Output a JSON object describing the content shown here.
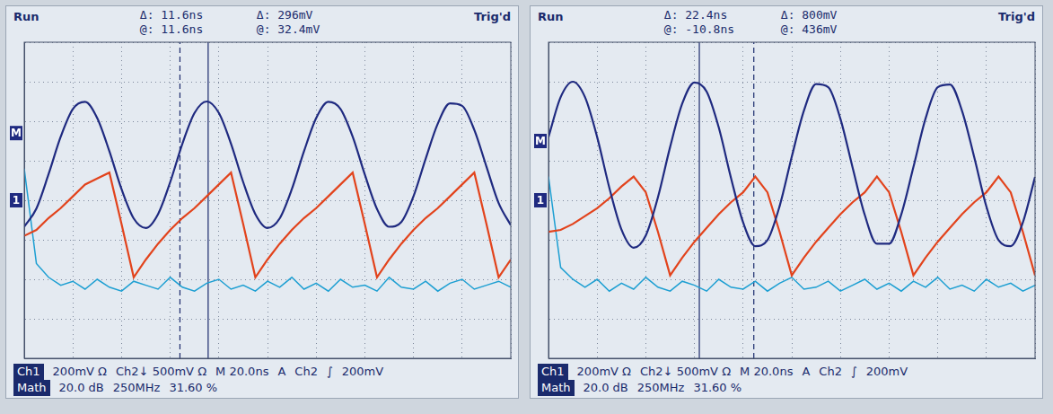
{
  "chart_data": [
    {
      "type": "line",
      "status": "Run",
      "trigger_status": "Trig'd",
      "readouts": [
        [
          "Δ: 11.6ns",
          "Δ: 296mV"
        ],
        [
          "@: 11.6ns",
          "@: 32.4mV"
        ]
      ],
      "footer": [
        [
          "Ch1",
          "200mV Ω",
          "Ch2↓ 500mV Ω",
          "M 20.0ns",
          "A",
          "Ch2",
          "∫",
          "200mV"
        ],
        [
          "Math",
          "20.0 dB",
          "250MHz",
          "31.60 %"
        ]
      ],
      "x": [
        0,
        0.25,
        0.5,
        0.75,
        1,
        1.25,
        1.5,
        1.75,
        2,
        2.25,
        2.5,
        2.75,
        3,
        3.25,
        3.5,
        3.75,
        4,
        4.25,
        4.5,
        4.75,
        5,
        5.25,
        5.5,
        5.75,
        6,
        6.25,
        6.5,
        6.75,
        7,
        7.25,
        7.5,
        7.75,
        8,
        8.25,
        8.5,
        8.75,
        9,
        9.25,
        9.5,
        9.75,
        10
      ],
      "series": [
        {
          "name": "Ch1",
          "color": "#1f2a80",
          "line_style": "smooth",
          "values": [
            -0.67,
            -0.21,
            0.66,
            1.61,
            2.31,
            2.49,
            2.08,
            1.24,
            0.28,
            -0.46,
            -0.7,
            -0.35,
            0.46,
            1.43,
            2.21,
            2.5,
            2.21,
            1.43,
            0.46,
            -0.35,
            -0.7,
            -0.46,
            0.28,
            1.24,
            2.08,
            2.49,
            2.31,
            1.61,
            0.65,
            -0.22,
            -0.67,
            -0.55,
            0.1,
            1.05,
            1.94,
            2.45,
            2.39,
            1.78,
            0.85,
            -0.07,
            -0.63
          ]
        },
        {
          "name": "Ch2",
          "color": "#e2431c",
          "line_style": "solid",
          "values": [
            -0.9,
            -0.75,
            -0.45,
            -0.2,
            0.1,
            0.4,
            0.55,
            0.7,
            -0.6,
            -1.95,
            -1.5,
            -1.1,
            -0.75,
            -0.45,
            -0.2,
            0.1,
            0.4,
            0.7,
            -0.6,
            -1.95,
            -1.5,
            -1.1,
            -0.75,
            -0.45,
            -0.2,
            0.1,
            0.4,
            0.7,
            -0.6,
            -1.95,
            -1.5,
            -1.1,
            -0.75,
            -0.45,
            -0.2,
            0.1,
            0.4,
            0.7,
            -0.6,
            -1.95,
            -1.5
          ]
        },
        {
          "name": "Math",
          "color": "#1d9fd2",
          "line_style": "solid",
          "values": [
            0.8,
            -1.6,
            -1.95,
            -2.15,
            -2.05,
            -2.25,
            -2.0,
            -2.2,
            -2.3,
            -2.05,
            -2.15,
            -2.25,
            -1.95,
            -2.2,
            -2.3,
            -2.1,
            -2.0,
            -2.25,
            -2.15,
            -2.3,
            -2.05,
            -2.2,
            -1.95,
            -2.25,
            -2.1,
            -2.3,
            -2.0,
            -2.2,
            -2.15,
            -2.3,
            -1.95,
            -2.2,
            -2.25,
            -2.05,
            -2.3,
            -2.1,
            -2.0,
            -2.25,
            -2.15,
            -2.05,
            -2.2
          ]
        }
      ],
      "cursors": [
        {
          "x": 3.2,
          "line_style": "dashed"
        },
        {
          "x": 3.78,
          "line_style": "solid"
        }
      ],
      "ref_markers": [
        {
          "label": "M",
          "value": 1.7
        },
        {
          "label": "1",
          "value": 0
        }
      ],
      "xlim": [
        0,
        10
      ],
      "xticks": [
        0,
        1,
        2,
        3,
        4,
        5,
        6,
        7,
        8,
        9,
        10
      ],
      "ylim": [
        -4,
        4
      ],
      "yticks": [
        -4,
        -3,
        -2,
        -1,
        0,
        1,
        2,
        3,
        4
      ],
      "grid": true,
      "tick_labels": false
    },
    {
      "type": "line",
      "status": "Run",
      "trigger_status": "Trig'd",
      "readouts": [
        [
          "Δ: 22.4ns",
          "Δ: 800mV"
        ],
        [
          "@: -10.8ns",
          "@: 436mV"
        ]
      ],
      "footer": [
        [
          "Ch1",
          "200mV Ω",
          "Ch2↓ 500mV Ω",
          "M 20.0ns",
          "A",
          "Ch2",
          "∫",
          "200mV"
        ],
        [
          "Math",
          "20.0 dB",
          "250MHz",
          "31.60 %"
        ]
      ],
      "x": [
        0,
        0.25,
        0.5,
        0.75,
        1,
        1.25,
        1.5,
        1.75,
        2,
        2.25,
        2.5,
        2.75,
        3,
        3.25,
        3.5,
        3.75,
        4,
        4.25,
        4.5,
        4.75,
        5,
        5.25,
        5.5,
        5.75,
        6,
        6.25,
        6.5,
        6.75,
        7,
        7.25,
        7.5,
        7.75,
        8,
        8.25,
        8.5,
        8.75,
        9,
        9.25,
        9.5,
        9.75,
        10
      ],
      "series": [
        {
          "name": "Ch1",
          "color": "#1f2a80",
          "line_style": "smooth",
          "values": [
            1.6,
            2.61,
            3.0,
            2.61,
            1.6,
            0.32,
            -0.74,
            -1.2,
            -0.89,
            0.08,
            1.35,
            2.45,
            2.98,
            2.75,
            1.84,
            0.57,
            -0.56,
            -1.16,
            -1.01,
            -0.15,
            1.1,
            2.27,
            2.94,
            2.86,
            2.06,
            0.83,
            -0.37,
            -1.1,
            -1.1,
            -0.36,
            0.84,
            2.07,
            2.86,
            2.93,
            2.26,
            1.09,
            -0.16,
            -1.01,
            -1.16,
            -0.56,
            0.59
          ]
        },
        {
          "name": "Ch2",
          "color": "#e2431c",
          "line_style": "solid",
          "values": [
            -0.8,
            -0.75,
            -0.6,
            -0.4,
            -0.2,
            0.05,
            0.35,
            0.6,
            0.2,
            -0.8,
            -1.9,
            -1.45,
            -1.05,
            -0.7,
            -0.35,
            -0.05,
            0.2,
            0.6,
            0.2,
            -0.8,
            -1.9,
            -1.45,
            -1.05,
            -0.7,
            -0.35,
            -0.05,
            0.2,
            0.6,
            0.2,
            -0.8,
            -1.9,
            -1.45,
            -1.05,
            -0.7,
            -0.35,
            -0.05,
            0.2,
            0.6,
            0.2,
            -0.8,
            -1.9
          ]
        },
        {
          "name": "Math",
          "color": "#1d9fd2",
          "line_style": "solid",
          "values": [
            0.6,
            -1.7,
            -2.0,
            -2.2,
            -2.0,
            -2.3,
            -2.1,
            -2.25,
            -1.95,
            -2.2,
            -2.3,
            -2.05,
            -2.15,
            -2.3,
            -2.0,
            -2.2,
            -2.25,
            -2.05,
            -2.3,
            -2.1,
            -1.95,
            -2.25,
            -2.2,
            -2.05,
            -2.3,
            -2.15,
            -2.0,
            -2.25,
            -2.1,
            -2.3,
            -2.05,
            -2.2,
            -1.95,
            -2.25,
            -2.15,
            -2.3,
            -2.0,
            -2.2,
            -2.1,
            -2.3,
            -2.15
          ]
        }
      ],
      "cursors": [
        {
          "x": 3.1,
          "line_style": "solid"
        },
        {
          "x": 4.22,
          "line_style": "dashed"
        }
      ],
      "ref_markers": [
        {
          "label": "M",
          "value": 1.5
        },
        {
          "label": "1",
          "value": 0
        }
      ],
      "xlim": [
        0,
        10
      ],
      "xticks": [
        0,
        1,
        2,
        3,
        4,
        5,
        6,
        7,
        8,
        9,
        10
      ],
      "ylim": [
        -4,
        4
      ],
      "yticks": [
        -4,
        -3,
        -2,
        -1,
        0,
        1,
        2,
        3,
        4
      ],
      "grid": true,
      "tick_labels": false
    }
  ]
}
